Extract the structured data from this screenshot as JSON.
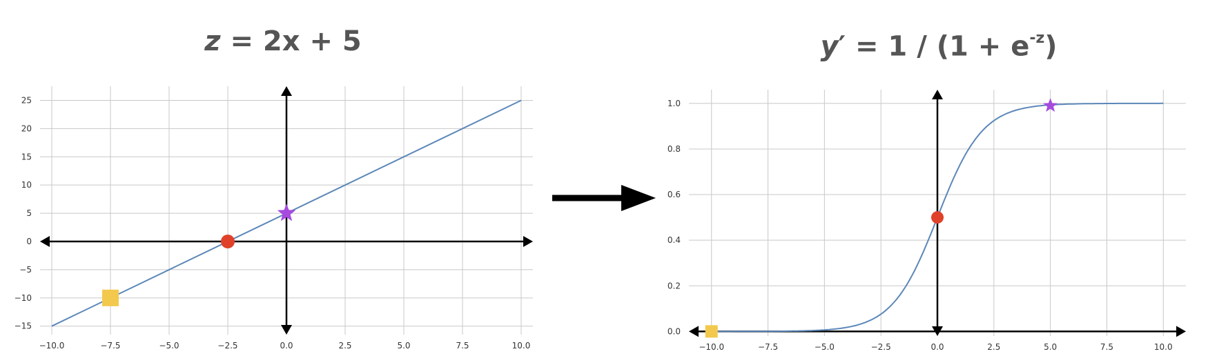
{
  "titles": {
    "left": {
      "var": "z",
      "rest": " = 2x + 5"
    },
    "right": {
      "var": "y",
      "prime": "′",
      "mid": " = 1 / (1 + e",
      "sup": "-z",
      "end": ")"
    }
  },
  "chart_data": [
    {
      "type": "line",
      "equation": "z = 2x + 5",
      "title": "z = 2x + 5",
      "x": [
        -10,
        10
      ],
      "y": [
        -15,
        25
      ],
      "xlim": [
        -10.5,
        10.5
      ],
      "ylim": [
        -16.5,
        27.5
      ],
      "xticks": [
        -10.0,
        -7.5,
        -5.0,
        -2.5,
        0.0,
        2.5,
        5.0,
        7.5,
        10.0
      ],
      "yticks": [
        -15,
        -10,
        -5,
        0,
        5,
        10,
        15,
        20,
        25
      ],
      "grid": true,
      "line_color": "#5b87b8",
      "markers": [
        {
          "shape": "square",
          "x": -7.5,
          "y": -10,
          "color": "#f2c94c"
        },
        {
          "shape": "circle",
          "x": -2.5,
          "y": 0,
          "color": "#e0412a"
        },
        {
          "shape": "star",
          "x": 0,
          "y": 5,
          "color": "#a64bde"
        }
      ]
    },
    {
      "type": "line",
      "equation": "y' = 1 / (1 + e^-z)",
      "title": "y′ = 1 / (1 + e-z)",
      "x_range": [
        -10,
        10
      ],
      "xlim": [
        -11,
        11
      ],
      "ylim": [
        -0.02,
        1.06
      ],
      "xticks": [
        -10.0,
        -7.5,
        -5.0,
        -2.5,
        0.0,
        2.5,
        5.0,
        7.5,
        10.0
      ],
      "yticks": [
        0.0,
        0.2,
        0.4,
        0.6,
        0.8,
        1.0
      ],
      "grid": true,
      "line_color": "#5b87b8",
      "markers": [
        {
          "shape": "square",
          "x": -10,
          "y": 0.0,
          "color": "#f2c94c"
        },
        {
          "shape": "circle",
          "x": 0,
          "y": 0.5,
          "color": "#e0412a"
        },
        {
          "shape": "star",
          "x": 5,
          "y": 0.99,
          "color": "#a64bde"
        }
      ]
    }
  ],
  "colors": {
    "grid": "#c8c8c8",
    "axis": "#000000",
    "arrow": "#000000"
  }
}
